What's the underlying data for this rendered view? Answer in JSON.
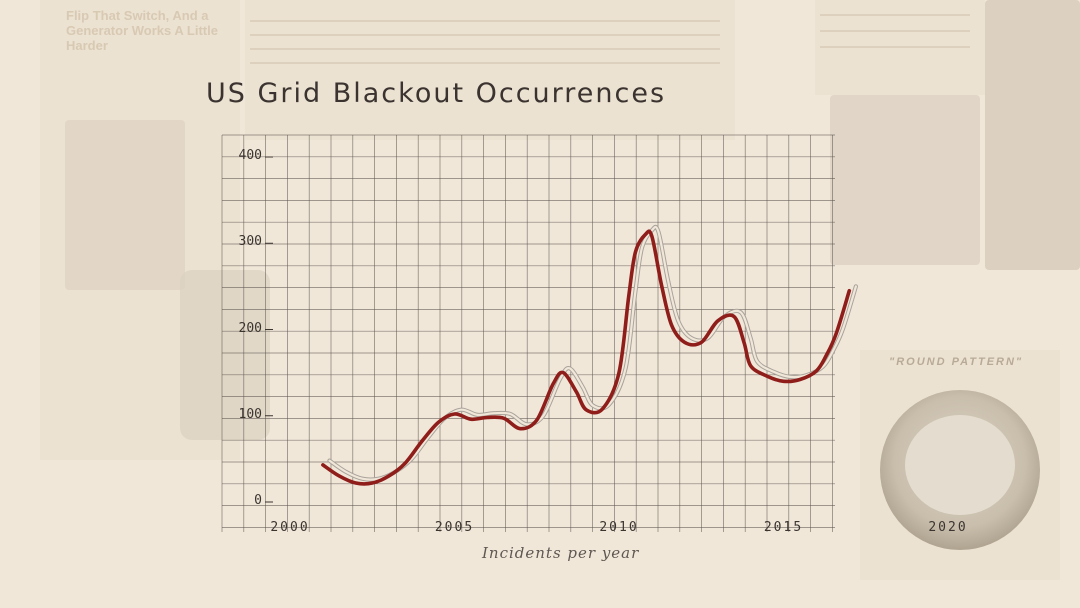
{
  "background": {
    "headline": "Flip That Switch, And a Generator Works A Little Harder",
    "meter_caption": "\"ROUND PATTERN\""
  },
  "chart_data": {
    "type": "line",
    "title": "US Grid Blackout Occurrences",
    "xlabel": "",
    "ylabel": "Incidents per year",
    "xlim": [
      2000,
      2020
    ],
    "ylim": [
      0,
      400
    ],
    "grid": true,
    "x_ticks": [
      2000,
      2005,
      2010,
      2015,
      2020
    ],
    "y_ticks": [
      0,
      100,
      200,
      300,
      400
    ],
    "colors": {
      "main": "#8f1d1a",
      "ghost": "#8c8781",
      "grid": "#5d5650"
    },
    "series": [
      {
        "x": [
          2001,
          2001.5,
          2002,
          2002.5,
          2003,
          2003.5,
          2004,
          2004.5,
          2005,
          2005.5,
          2006,
          2006.5,
          2007,
          2007.5,
          2008,
          2008.3,
          2008.7,
          2009,
          2009.5,
          2010,
          2010.3,
          2010.5,
          2010.8,
          2011,
          2011.3,
          2011.6,
          2012,
          2012.5,
          2013,
          2013.5,
          2013.8,
          2014,
          2014.5,
          2015,
          2015.5,
          2016,
          2016.3,
          2016.6,
          2017
        ],
        "y": [
          43,
          30,
          22,
          22,
          30,
          45,
          70,
          92,
          102,
          96,
          98,
          97,
          85,
          95,
          137,
          150,
          128,
          107,
          108,
          150,
          240,
          290,
          310,
          308,
          250,
          205,
          185,
          185,
          210,
          215,
          185,
          158,
          146,
          140,
          142,
          152,
          170,
          195,
          245
        ]
      },
      {
        "x": [
          2001.2,
          2001.7,
          2002.2,
          2002.7,
          2003.2,
          2003.7,
          2004.2,
          2004.7,
          2005.2,
          2005.7,
          2006.2,
          2006.7,
          2007.2,
          2007.7,
          2008.2,
          2008.5,
          2008.9,
          2009.2,
          2009.7,
          2010.2,
          2010.5,
          2010.7,
          2011,
          2011.2,
          2011.5,
          2011.8,
          2012.2,
          2012.7,
          2013.2,
          2013.7,
          2014,
          2014.2,
          2014.7,
          2015.2,
          2015.7,
          2016.2,
          2016.5,
          2016.8,
          2017.2
        ],
        "y": [
          48,
          35,
          27,
          27,
          35,
          50,
          75,
          97,
          107,
          101,
          103,
          102,
          90,
          100,
          142,
          155,
          133,
          112,
          113,
          155,
          245,
          295,
          315,
          313,
          255,
          210,
          190,
          190,
          215,
          220,
          190,
          163,
          151,
          145,
          147,
          157,
          175,
          200,
          250
        ]
      }
    ]
  }
}
